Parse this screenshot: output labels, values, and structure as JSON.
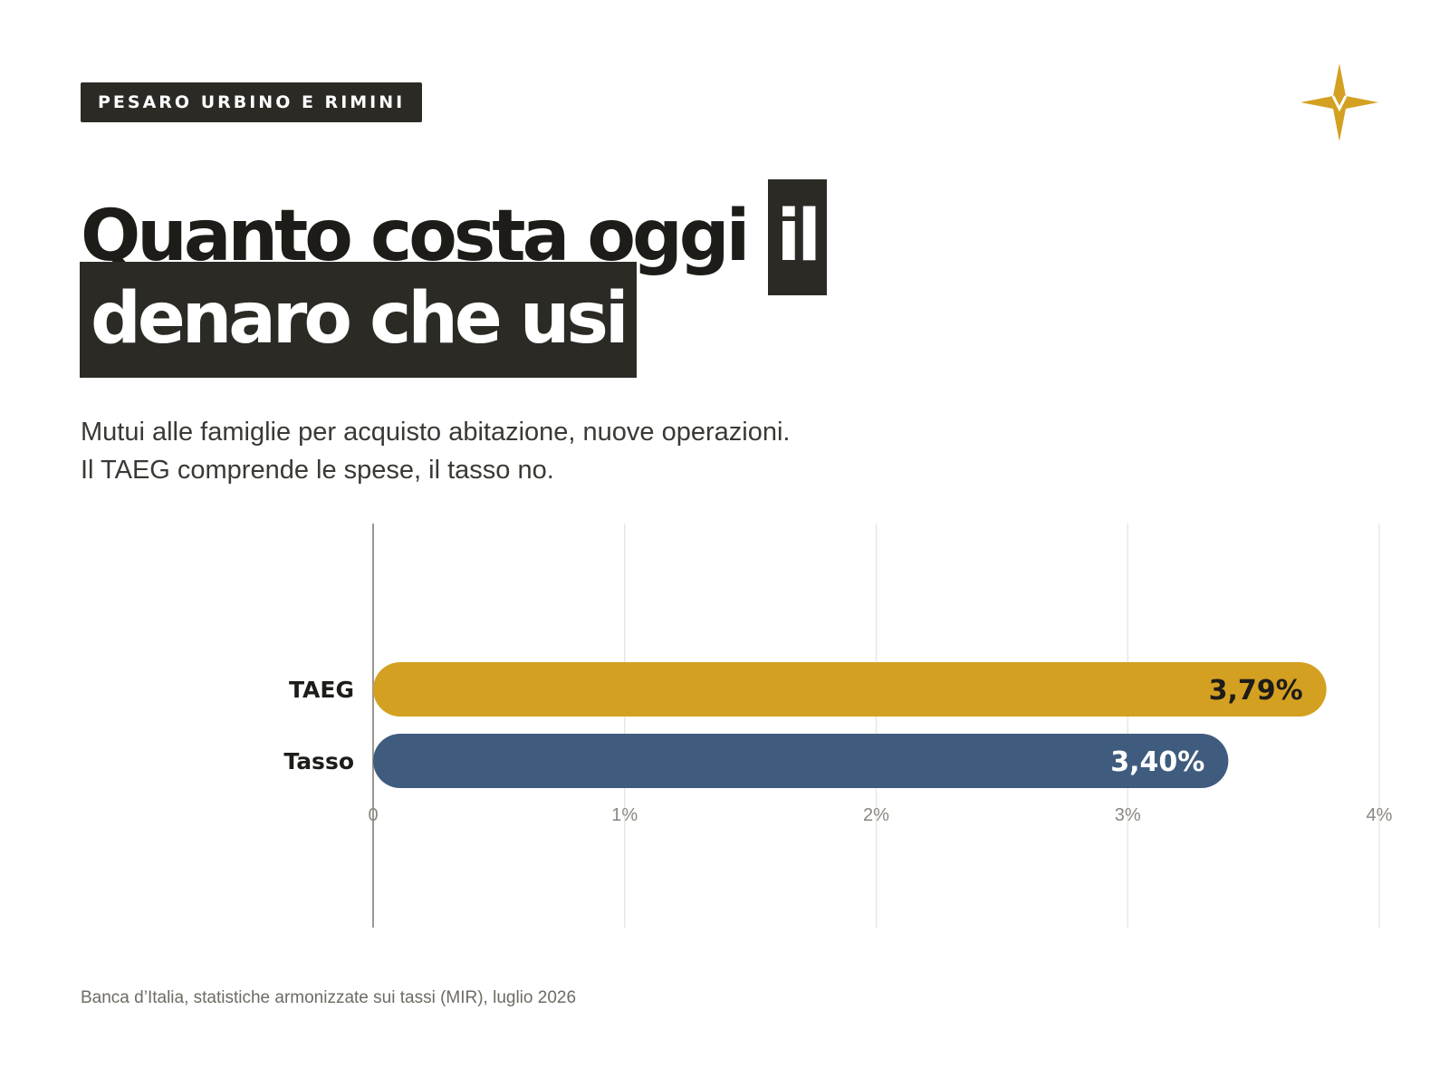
{
  "header": {
    "region_label": "PESARO URBINO E RIMINI",
    "logo_icon": "four-point-star-icon",
    "logo_color": "#D4A021"
  },
  "title": {
    "line1_text": "Quanto costa oggi ",
    "line1_highlight": "il",
    "line2_highlight": "denaro che usi"
  },
  "subtitle": {
    "line1": "Mutui alle famiglie per acquisto abitazione, nuove operazioni.",
    "line2": "Il TAEG comprende le spese, il tasso no."
  },
  "chart_data": {
    "type": "bar",
    "orientation": "horizontal",
    "categories": [
      "TAEG",
      "Tasso"
    ],
    "values": [
      3.79,
      3.4
    ],
    "value_labels": [
      "3,79%",
      "3,40%"
    ],
    "colors": [
      "#D4A021",
      "#3F5C7E"
    ],
    "label_colors": [
      "#1e1c18",
      "#ffffff"
    ],
    "xlim": [
      0,
      4
    ],
    "x_ticks": [
      0,
      1,
      2,
      3,
      4
    ],
    "x_tick_labels": [
      "0",
      "1%",
      "2%",
      "3%",
      "4%"
    ],
    "grid": true,
    "legend": "none"
  },
  "footer": {
    "source": "Banca d’Italia, statistiche armonizzate sui tassi (MIR), luglio 2026"
  }
}
